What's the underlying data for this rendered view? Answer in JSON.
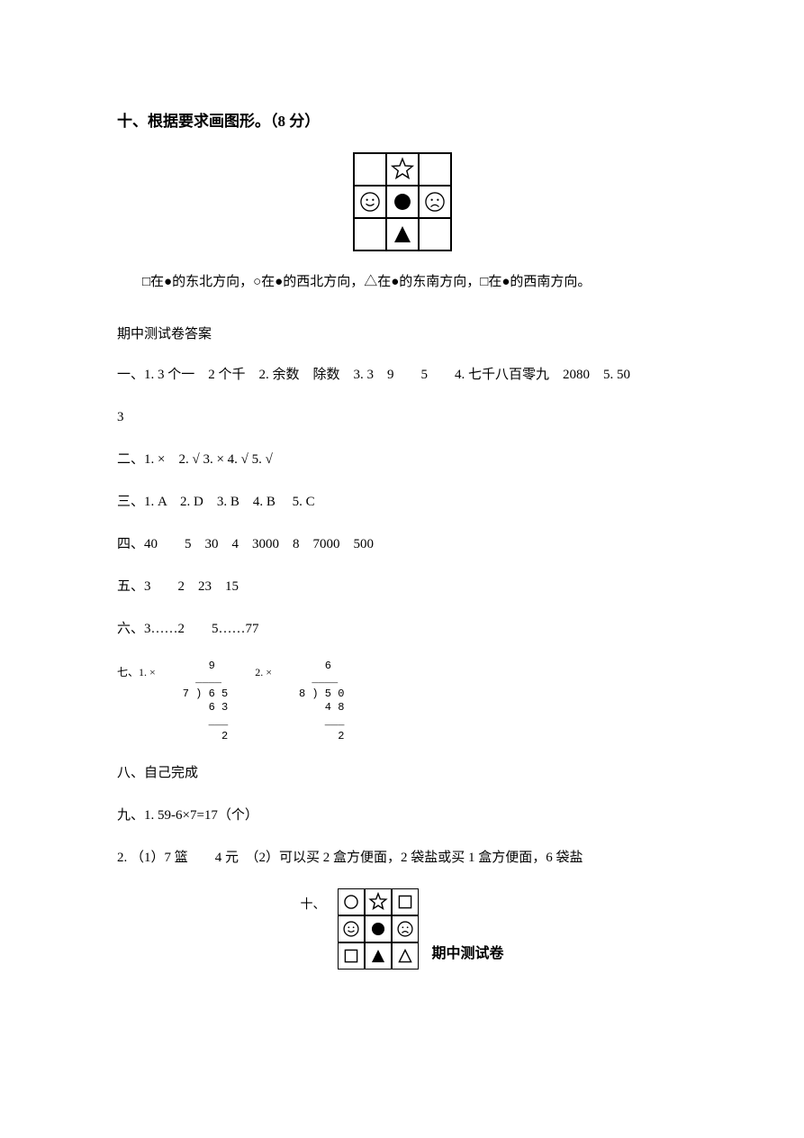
{
  "q10": {
    "heading": "十、根据要求画图形。（8 分）",
    "instruction": "□在●的东北方向，○在●的西北方向，△在●的东南方向，□在●的西南方向。"
  },
  "answers": {
    "title": "期中测试卷答案",
    "a1": "一、1. 3 个一　2 个千　2. 余数　除数　3. 3　9　　5　　4. 七千八百零九　2080　5. 50",
    "a1b": "3",
    "a2": "二、1.  ×　2. √  3.  ×  4. √  5. √",
    "a3": "三、1. A　2. D　3. B　4. B 　5. C",
    "a4": "四、40　　5　30　4　3000　8　7000　500",
    "a5": "五、3　　2　23　15",
    "a6": "六、3……2　　5……77",
    "a7label": "七、1. ×",
    "a7mid": "2. ×",
    "a8": "八、自己完成",
    "a9": "九、1. 59-6×7=17（个）",
    "a9b": "2. （1）7 篮　　4 元　（2）可以买 2 盒方便面，2 袋盐或买 1 盒方便面，6 袋盐",
    "tenPrefix": "十、",
    "footerLabel": "期中测试卷"
  },
  "gridTop": {
    "cells": [
      "",
      "star",
      "",
      "smile",
      "black-circle",
      "frown",
      "",
      "black-triangle",
      ""
    ]
  },
  "gridBottom": {
    "cells": [
      "circle-outline",
      "star",
      "square-outline",
      "smile",
      "black-circle",
      "frown",
      "square-outline",
      "black-triangle",
      "triangle-outline"
    ]
  },
  "colors": {
    "text": "#000000",
    "bg": "#ffffff",
    "border": "#000000"
  },
  "longdiv1": {
    "q": "    9",
    "top": "  ____",
    "d": "7 ) 6 5",
    "s": "    6 3",
    "line": "    ___",
    "r": "      2"
  },
  "longdiv2": {
    "q": "    6",
    "top": "  ____",
    "d": "8 ) 5 0",
    "s": "    4 8",
    "line": "    ___",
    "r": "      2"
  }
}
